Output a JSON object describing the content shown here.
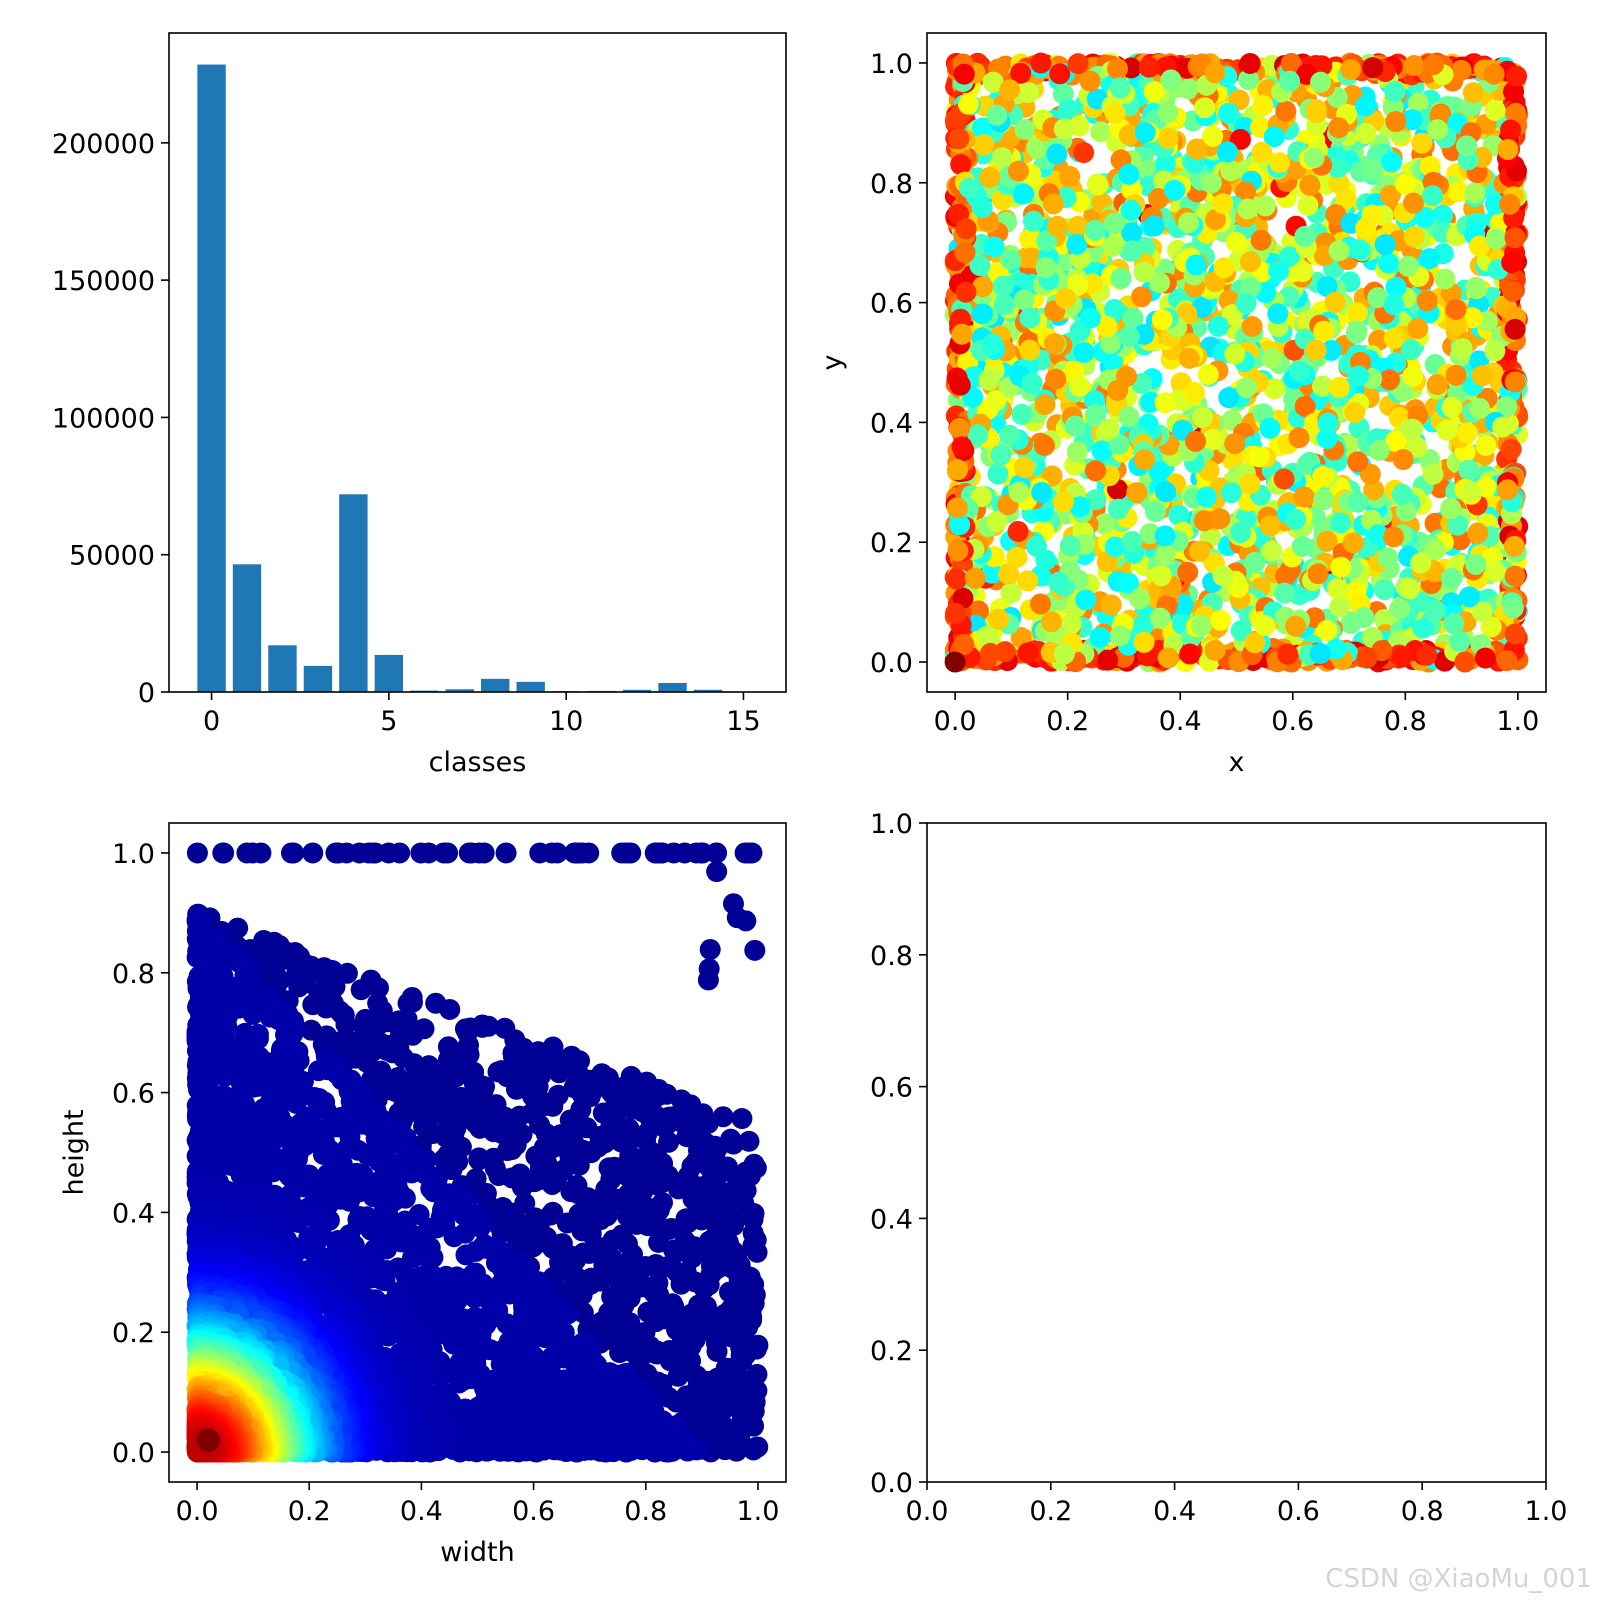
{
  "watermark": "CSDN @XiaoMu_001",
  "chart_data": [
    {
      "id": "classes_hist",
      "type": "bar",
      "xlabel": "classes",
      "ylabel": "",
      "xlim": [
        -1.2,
        16.2
      ],
      "ylim": [
        0,
        240000
      ],
      "xticks": [
        0,
        5,
        10,
        15
      ],
      "yticks": [
        0,
        50000,
        100000,
        150000,
        200000
      ],
      "categories": [
        0,
        1,
        2,
        3,
        4,
        5,
        6,
        7,
        8,
        9,
        10,
        11,
        12,
        13,
        14,
        15
      ],
      "values": [
        228500,
        46500,
        17000,
        9500,
        72000,
        13500,
        500,
        1000,
        4800,
        3700,
        300,
        400,
        800,
        3300,
        800,
        0
      ],
      "bar_color": "#1f77b4"
    },
    {
      "id": "xy_scatter",
      "type": "scatter",
      "xlabel": "x",
      "ylabel": "y",
      "xlim": [
        -0.05,
        1.05
      ],
      "ylim": [
        -0.05,
        1.05
      ],
      "xticks": [
        0.0,
        0.2,
        0.4,
        0.6,
        0.8,
        1.0
      ],
      "yticks": [
        0.0,
        0.2,
        0.4,
        0.6,
        0.8,
        1.0
      ],
      "colormap": "jet",
      "distribution": "uniform over [0,1]x[0,1], denser along edges",
      "point_count_drawn": 3000
    },
    {
      "id": "wh_scatter",
      "type": "scatter",
      "xlabel": "width",
      "ylabel": "height",
      "xlim": [
        -0.05,
        1.05
      ],
      "ylim": [
        -0.05,
        1.05
      ],
      "xticks": [
        0.0,
        0.2,
        0.4,
        0.6,
        0.8,
        1.0
      ],
      "yticks": [
        0.0,
        0.2,
        0.4,
        0.6,
        0.8,
        1.0
      ],
      "colormap": "jet",
      "distribution": "concentrated near origin, sparse toward 1.0",
      "point_count_drawn": 3200
    },
    {
      "id": "empty_axes",
      "type": "scatter",
      "xlabel": "",
      "ylabel": "",
      "xlim": [
        0,
        1
      ],
      "ylim": [
        0,
        1
      ],
      "xticks": [
        0.0,
        0.2,
        0.4,
        0.6,
        0.8,
        1.0
      ],
      "yticks": [
        0.0,
        0.2,
        0.4,
        0.6,
        0.8,
        1.0
      ]
    }
  ]
}
